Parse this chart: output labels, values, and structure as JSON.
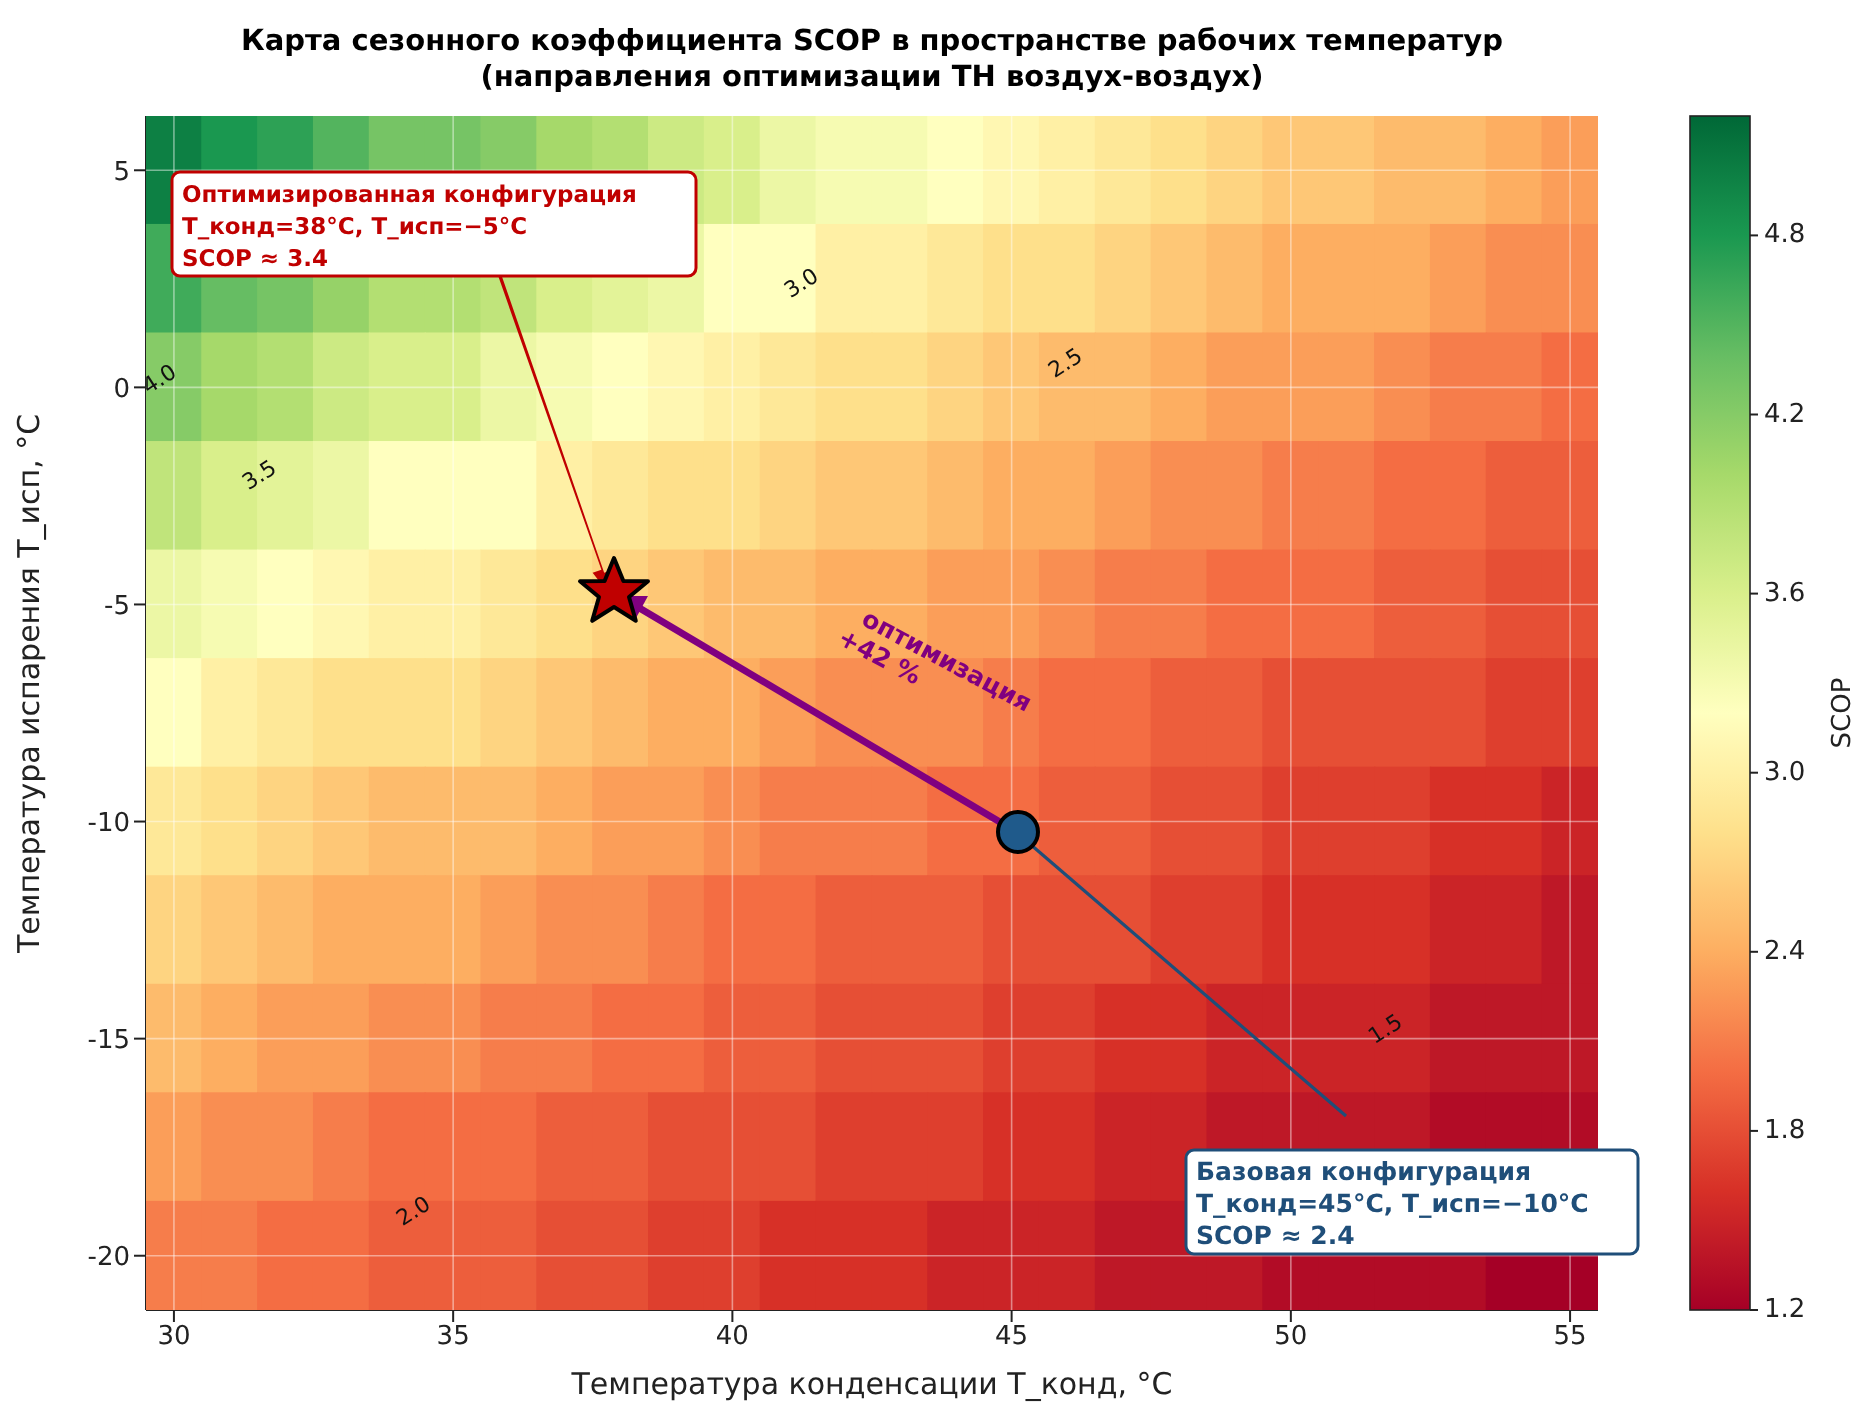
{
  "chart_data": {
    "type": "heatmap",
    "title": "Карта сезонного коэффициента SCOP в пространстве рабочих температур",
    "subtitle": "(направления оптимизации ТН воздух-воздух)",
    "xlabel": "Температура конденсации T_конд, °C",
    "ylabel": "Температура испарения T_исп, °C",
    "clabel": "SCOP",
    "categories": [
      "30",
      null,
      null,
      null,
      null,
      "35",
      null,
      null,
      null,
      null,
      "40",
      null,
      null,
      null,
      null,
      "45",
      null,
      null,
      null,
      null,
      "50",
      null,
      null,
      null,
      null,
      "55"
    ],
    "y_categories": [
      "5",
      null,
      "0",
      null,
      "-5",
      null,
      "-10",
      null,
      "-15",
      null,
      "-20"
    ],
    "cells": [
      [
        5.0,
        4.8,
        4.7,
        4.5,
        4.3,
        4.3,
        4.2,
        4.0,
        3.9,
        3.7,
        3.6,
        3.4,
        3.3,
        3.3,
        3.2,
        3.1,
        3.0,
        2.9,
        2.8,
        2.7,
        2.6,
        2.6,
        2.5,
        2.5,
        2.4,
        2.3
      ],
      [
        4.6,
        4.4,
        4.3,
        4.1,
        3.9,
        3.9,
        3.8,
        3.6,
        3.5,
        3.4,
        3.2,
        3.2,
        3.0,
        3.0,
        2.9,
        2.8,
        2.8,
        2.7,
        2.6,
        2.5,
        2.4,
        2.4,
        2.4,
        2.3,
        2.2,
        2.2
      ],
      [
        4.2,
        4.0,
        3.9,
        3.7,
        3.6,
        3.6,
        3.4,
        3.3,
        3.2,
        3.1,
        3.0,
        2.9,
        2.8,
        2.8,
        2.7,
        2.6,
        2.5,
        2.5,
        2.4,
        2.3,
        2.3,
        2.3,
        2.2,
        2.1,
        2.1,
        2.0
      ],
      [
        3.8,
        3.6,
        3.5,
        3.4,
        3.2,
        3.2,
        3.2,
        3.0,
        2.9,
        2.8,
        2.8,
        2.7,
        2.6,
        2.6,
        2.5,
        2.4,
        2.4,
        2.3,
        2.2,
        2.2,
        2.1,
        2.1,
        2.0,
        2.0,
        1.9,
        1.9
      ],
      [
        3.4,
        3.3,
        3.2,
        3.1,
        3.0,
        3.0,
        2.9,
        2.8,
        2.7,
        2.6,
        2.5,
        2.5,
        2.4,
        2.4,
        2.3,
        2.3,
        2.2,
        2.1,
        2.1,
        2.0,
        2.0,
        2.0,
        1.9,
        1.9,
        1.8,
        1.8
      ],
      [
        3.2,
        3.0,
        2.9,
        2.8,
        2.8,
        2.8,
        2.7,
        2.6,
        2.5,
        2.4,
        2.4,
        2.3,
        2.2,
        2.2,
        2.2,
        2.1,
        2.0,
        2.0,
        1.9,
        1.9,
        1.8,
        1.8,
        1.8,
        1.8,
        1.7,
        1.7
      ],
      [
        2.9,
        2.8,
        2.7,
        2.6,
        2.5,
        2.5,
        2.5,
        2.4,
        2.3,
        2.3,
        2.2,
        2.1,
        2.1,
        2.1,
        2.0,
        2.0,
        1.9,
        1.9,
        1.8,
        1.8,
        1.7,
        1.7,
        1.7,
        1.6,
        1.6,
        1.5
      ],
      [
        2.7,
        2.6,
        2.5,
        2.4,
        2.4,
        2.4,
        2.3,
        2.2,
        2.2,
        2.1,
        2.0,
        2.0,
        1.9,
        1.9,
        1.9,
        1.8,
        1.8,
        1.8,
        1.7,
        1.7,
        1.6,
        1.6,
        1.6,
        1.5,
        1.5,
        1.4
      ],
      [
        2.5,
        2.4,
        2.3,
        2.3,
        2.2,
        2.2,
        2.1,
        2.1,
        2.0,
        2.0,
        1.9,
        1.9,
        1.8,
        1.8,
        1.8,
        1.7,
        1.7,
        1.6,
        1.6,
        1.5,
        1.5,
        1.5,
        1.5,
        1.4,
        1.4,
        1.4
      ],
      [
        2.3,
        2.2,
        2.2,
        2.1,
        2.0,
        2.0,
        2.0,
        1.9,
        1.9,
        1.8,
        1.8,
        1.8,
        1.7,
        1.7,
        1.7,
        1.6,
        1.6,
        1.5,
        1.5,
        1.4,
        1.4,
        1.4,
        1.4,
        1.3,
        1.3,
        1.3
      ],
      [
        2.1,
        2.1,
        2.0,
        2.0,
        1.9,
        1.9,
        1.9,
        1.8,
        1.8,
        1.7,
        1.7,
        1.6,
        1.6,
        1.6,
        1.5,
        1.5,
        1.5,
        1.4,
        1.4,
        1.4,
        1.3,
        1.3,
        1.3,
        1.3,
        1.2,
        1.2
      ]
    ],
    "clim": [
      1.2,
      5.2
    ],
    "cticks": [
      1.2,
      1.8,
      2.4,
      {
        "value": 3,
        "label": "3.0"
      },
      3.6,
      4.2,
      4.8
    ],
    "grid": true,
    "annotations": [
      "Оптимизированная конфигурация\nT_конд=38°C, T_исп=−5°C\nSCOP ≈ 3.4",
      "Базовая конфигурация\nT_конд=45°C, T_исп=−10°C\nSCOP ≈ 2.4",
      "оптимизация\n+42 %",
      "4.0",
      "3.5",
      "3.0",
      "2.5",
      "2.0",
      "1.5"
    ]
  }
}
